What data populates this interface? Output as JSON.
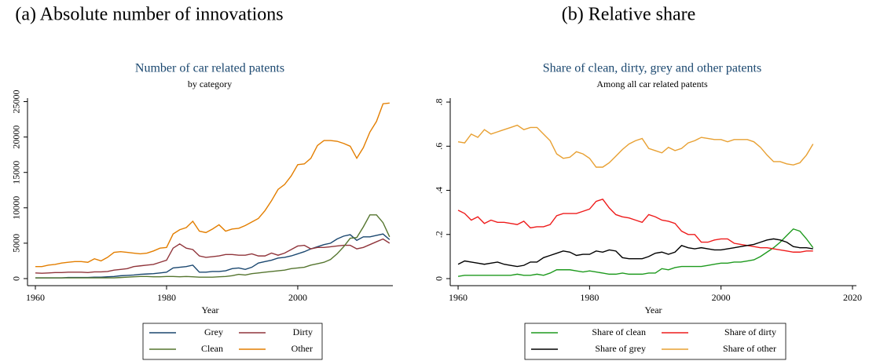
{
  "chart_data": [
    {
      "type": "line",
      "caption": "(a) Absolute number of innovations",
      "title": "Number of car related patents",
      "subtitle": "by category",
      "x_label": "Year",
      "x": [
        1960,
        1961,
        1962,
        1963,
        1964,
        1965,
        1966,
        1967,
        1968,
        1969,
        1970,
        1971,
        1972,
        1973,
        1974,
        1975,
        1976,
        1977,
        1978,
        1979,
        1980,
        1981,
        1982,
        1983,
        1984,
        1985,
        1986,
        1987,
        1988,
        1989,
        1990,
        1991,
        1992,
        1993,
        1994,
        1995,
        1996,
        1997,
        1998,
        1999,
        2000,
        2001,
        2002,
        2003,
        2004,
        2005,
        2006,
        2007,
        2008,
        2009,
        2010,
        2011,
        2012,
        2013,
        2014
      ],
      "xlim": [
        1958.8,
        2014.5
      ],
      "xticks": [
        1960,
        1980,
        2000
      ],
      "ylim": [
        -1000,
        25500
      ],
      "yticks": [
        0,
        5000,
        10000,
        15000,
        20000,
        25000
      ],
      "series": [
        {
          "name": "Grey",
          "color": "#1a476f",
          "values": [
            100,
            100,
            100,
            100,
            100,
            150,
            150,
            150,
            150,
            200,
            200,
            250,
            300,
            400,
            450,
            500,
            600,
            650,
            700,
            800,
            900,
            1500,
            1600,
            1700,
            1900,
            900,
            900,
            1000,
            1000,
            1100,
            1400,
            1500,
            1300,
            1600,
            2200,
            2400,
            2600,
            2900,
            3000,
            3200,
            3500,
            3800,
            4200,
            4500,
            4800,
            5000,
            5600,
            6000,
            6200,
            5400,
            5900,
            5900,
            6100,
            6300,
            5500
          ]
        },
        {
          "name": "Dirty",
          "color": "#90353b",
          "values": [
            800,
            750,
            800,
            850,
            850,
            900,
            900,
            900,
            850,
            950,
            950,
            1000,
            1200,
            1300,
            1400,
            1700,
            1800,
            1900,
            2000,
            2300,
            2600,
            4300,
            4900,
            4300,
            4100,
            3200,
            3000,
            3100,
            3200,
            3400,
            3400,
            3300,
            3300,
            3500,
            3200,
            3200,
            3600,
            3300,
            3600,
            4100,
            4600,
            4700,
            4200,
            4400,
            4400,
            4500,
            4600,
            4700,
            4700,
            4200,
            4400,
            4800,
            5200,
            5600,
            5000
          ]
        },
        {
          "name": "Clean",
          "color": "#55752f",
          "values": [
            100,
            100,
            100,
            100,
            100,
            100,
            100,
            100,
            100,
            100,
            100,
            100,
            100,
            150,
            200,
            250,
            300,
            300,
            250,
            250,
            300,
            300,
            250,
            300,
            250,
            200,
            200,
            200,
            250,
            300,
            400,
            600,
            500,
            700,
            800,
            900,
            1000,
            1100,
            1200,
            1400,
            1500,
            1600,
            1900,
            2100,
            2300,
            2700,
            3500,
            4500,
            5700,
            5800,
            7300,
            9000,
            9000,
            7900,
            5900
          ]
        },
        {
          "name": "Other",
          "color": "#e37e00",
          "values": [
            1700,
            1700,
            1900,
            2000,
            2200,
            2300,
            2400,
            2400,
            2300,
            2800,
            2500,
            3000,
            3700,
            3800,
            3700,
            3600,
            3500,
            3600,
            3900,
            4300,
            4400,
            6300,
            6900,
            7200,
            8100,
            6700,
            6500,
            7000,
            7600,
            6700,
            7000,
            7100,
            7500,
            8000,
            8500,
            9600,
            11000,
            12600,
            13300,
            14500,
            16100,
            16200,
            17000,
            18800,
            19500,
            19500,
            19400,
            19100,
            18700,
            17000,
            18500,
            20700,
            22200,
            24700,
            24800
          ]
        }
      ]
    },
    {
      "type": "line",
      "caption": "(b) Relative share",
      "title": "Share of clean, dirty, grey and other patents",
      "subtitle": "Among all car related patents",
      "x_label": "Year",
      "x": [
        1960,
        1961,
        1962,
        1963,
        1964,
        1965,
        1966,
        1967,
        1968,
        1969,
        1970,
        1971,
        1972,
        1973,
        1974,
        1975,
        1976,
        1977,
        1978,
        1979,
        1980,
        1981,
        1982,
        1983,
        1984,
        1985,
        1986,
        1987,
        1988,
        1989,
        1990,
        1991,
        1992,
        1993,
        1994,
        1995,
        1996,
        1997,
        1998,
        1999,
        2000,
        2001,
        2002,
        2003,
        2004,
        2005,
        2006,
        2007,
        2008,
        2009,
        2010,
        2011,
        2012,
        2013,
        2014
      ],
      "xlim": [
        1958.8,
        2020.6
      ],
      "xticks": [
        1960,
        1980,
        2000,
        2020
      ],
      "ylim": [
        -0.032,
        0.818
      ],
      "yticks": [
        0,
        {
          "value": 0.2,
          "label": ".2"
        },
        {
          "value": 0.4,
          "label": ".4"
        },
        {
          "value": 0.6,
          "label": ".6"
        },
        {
          "value": 0.8,
          "label": ".8"
        }
      ],
      "series": [
        {
          "name": "Share of clean",
          "color": "#1e9a1e",
          "values": [
            0.01,
            0.015,
            0.015,
            0.015,
            0.015,
            0.015,
            0.015,
            0.015,
            0.015,
            0.02,
            0.015,
            0.015,
            0.02,
            0.015,
            0.025,
            0.04,
            0.04,
            0.04,
            0.035,
            0.03,
            0.035,
            0.03,
            0.025,
            0.02,
            0.02,
            0.025,
            0.02,
            0.02,
            0.02,
            0.025,
            0.025,
            0.045,
            0.04,
            0.05,
            0.055,
            0.055,
            0.055,
            0.055,
            0.06,
            0.065,
            0.07,
            0.07,
            0.075,
            0.075,
            0.08,
            0.085,
            0.1,
            0.12,
            0.14,
            0.165,
            0.195,
            0.225,
            0.215,
            0.18,
            0.14
          ]
        },
        {
          "name": "Share of dirty",
          "color": "#ee1c1c",
          "values": [
            0.31,
            0.295,
            0.265,
            0.28,
            0.25,
            0.265,
            0.255,
            0.255,
            0.25,
            0.245,
            0.26,
            0.23,
            0.235,
            0.235,
            0.245,
            0.285,
            0.295,
            0.295,
            0.295,
            0.305,
            0.315,
            0.35,
            0.36,
            0.32,
            0.29,
            0.28,
            0.275,
            0.265,
            0.255,
            0.29,
            0.28,
            0.265,
            0.26,
            0.25,
            0.215,
            0.2,
            0.2,
            0.165,
            0.165,
            0.175,
            0.18,
            0.18,
            0.16,
            0.155,
            0.15,
            0.145,
            0.14,
            0.14,
            0.135,
            0.13,
            0.125,
            0.12,
            0.12,
            0.125,
            0.125
          ]
        },
        {
          "name": "Share of grey",
          "color": "#000000",
          "values": [
            0.065,
            0.08,
            0.075,
            0.07,
            0.065,
            0.07,
            0.075,
            0.065,
            0.06,
            0.055,
            0.06,
            0.075,
            0.075,
            0.095,
            0.105,
            0.115,
            0.125,
            0.12,
            0.105,
            0.11,
            0.11,
            0.125,
            0.12,
            0.13,
            0.125,
            0.095,
            0.09,
            0.09,
            0.09,
            0.1,
            0.115,
            0.12,
            0.11,
            0.12,
            0.15,
            0.14,
            0.135,
            0.14,
            0.135,
            0.13,
            0.13,
            0.135,
            0.14,
            0.145,
            0.15,
            0.155,
            0.165,
            0.175,
            0.18,
            0.175,
            0.165,
            0.145,
            0.14,
            0.14,
            0.135
          ]
        },
        {
          "name": "Share of other",
          "color": "#e8a032",
          "values": [
            0.62,
            0.615,
            0.655,
            0.64,
            0.675,
            0.655,
            0.665,
            0.675,
            0.685,
            0.695,
            0.675,
            0.685,
            0.685,
            0.655,
            0.625,
            0.565,
            0.545,
            0.55,
            0.575,
            0.565,
            0.545,
            0.505,
            0.505,
            0.525,
            0.555,
            0.585,
            0.61,
            0.625,
            0.635,
            0.59,
            0.58,
            0.57,
            0.595,
            0.58,
            0.59,
            0.615,
            0.625,
            0.64,
            0.635,
            0.63,
            0.63,
            0.62,
            0.63,
            0.63,
            0.63,
            0.62,
            0.595,
            0.56,
            0.53,
            0.53,
            0.52,
            0.515,
            0.525,
            0.56,
            0.61
          ]
        }
      ]
    }
  ]
}
